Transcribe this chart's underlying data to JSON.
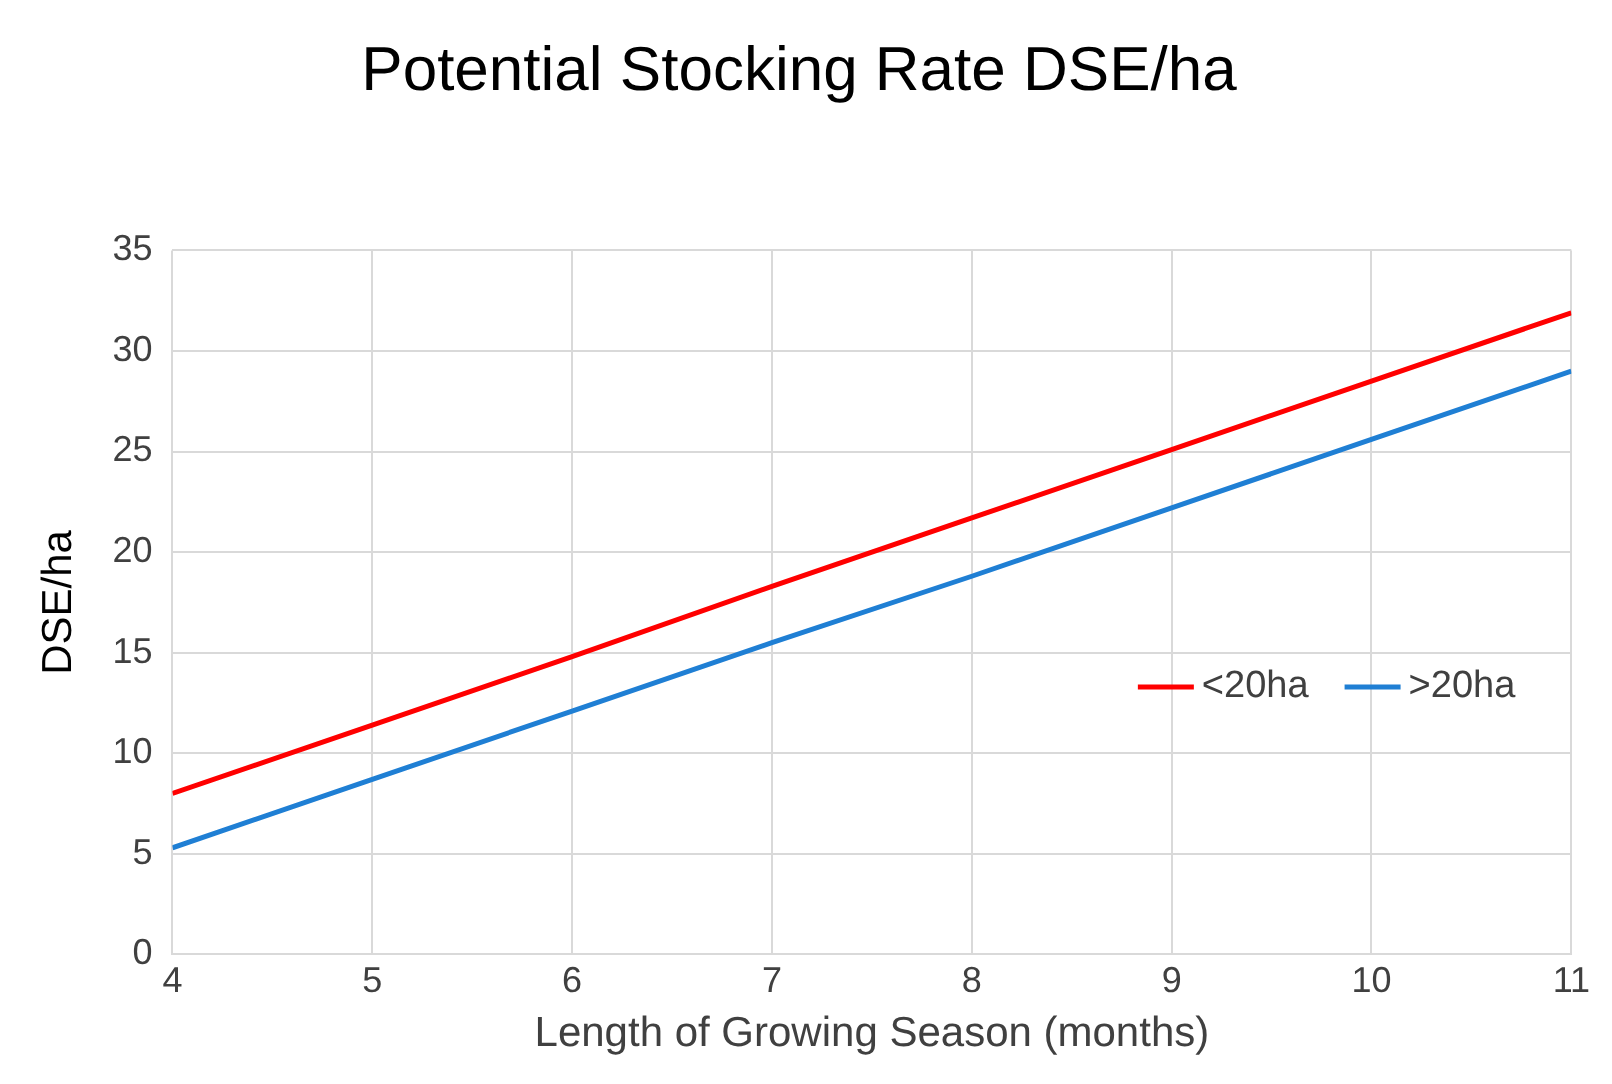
{
  "chart_data": {
    "type": "line",
    "title": "Potential Stocking Rate DSE/ha",
    "xlabel": "Length of Growing Season (months)",
    "ylabel": "DSE/ha",
    "x": [
      4,
      5,
      6,
      7,
      8,
      9,
      10,
      11
    ],
    "series": [
      {
        "name": "<20ha",
        "color": "#ff0000",
        "values": [
          8,
          11.4,
          14.8,
          18.3,
          21.7,
          25.1,
          28.5,
          31.9
        ]
      },
      {
        "name": ">20ha",
        "color": "#1f7fd4",
        "values": [
          5.3,
          8.7,
          12.1,
          15.5,
          18.8,
          22.2,
          25.6,
          29.0
        ]
      }
    ],
    "xlim": [
      4,
      11
    ],
    "xticks": [
      4,
      5,
      6,
      7,
      8,
      9,
      10,
      11
    ],
    "ylim": [
      0,
      35
    ],
    "yticks": [
      0,
      5,
      10,
      15,
      20,
      25,
      30,
      35
    ],
    "grid": true,
    "legend": "right",
    "marker": "none",
    "line_style": "solid"
  }
}
